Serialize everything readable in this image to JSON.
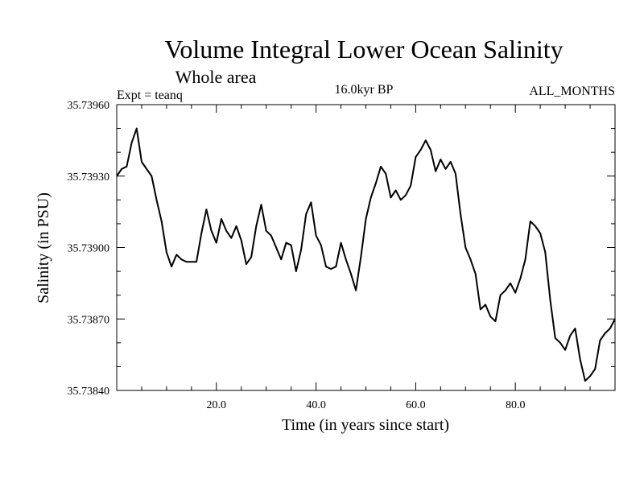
{
  "chart_data": {
    "type": "line",
    "title": "Volume Integral Lower Ocean Salinity",
    "subtitle": "Whole area",
    "annotations": {
      "left": "Expt = teanq",
      "center": "16.0kyr BP",
      "right": "ALL_MONTHS"
    },
    "xlabel": "Time (in years since start)",
    "ylabel": "Salinity (in PSU)",
    "xlim": [
      0,
      100
    ],
    "ylim": [
      35.7384,
      35.7396
    ],
    "x_ticks": [
      20,
      40,
      60,
      80
    ],
    "x_tick_labels": [
      "20.0",
      "40.0",
      "60.0",
      "80.0"
    ],
    "x_minor_step": 5,
    "y_ticks": [
      35.7384,
      35.7387,
      35.739,
      35.7393,
      35.7396
    ],
    "y_tick_labels": [
      "35.73840",
      "35.73870",
      "35.73900",
      "35.73930",
      "35.73960"
    ],
    "y_minor_step": 0.0001,
    "grid": false,
    "series": [
      {
        "name": "salinity",
        "color": "#000000",
        "x": [
          0,
          1,
          2,
          3,
          4,
          5,
          6,
          7,
          8,
          9,
          10,
          11,
          12,
          13,
          14,
          15,
          16,
          17,
          18,
          19,
          20,
          21,
          22,
          23,
          24,
          25,
          26,
          27,
          28,
          29,
          30,
          31,
          32,
          33,
          34,
          35,
          36,
          37,
          38,
          39,
          40,
          41,
          42,
          43,
          44,
          45,
          46,
          47,
          48,
          49,
          50,
          51,
          52,
          53,
          54,
          55,
          56,
          57,
          58,
          59,
          60,
          61,
          62,
          63,
          64,
          65,
          66,
          67,
          68,
          69,
          70,
          71,
          72,
          73,
          74,
          75,
          76,
          77,
          78,
          79,
          80,
          81,
          82,
          83,
          84,
          85,
          86,
          87,
          88,
          89,
          90,
          91,
          92,
          93,
          94,
          95,
          96,
          97,
          98,
          99,
          100
        ],
        "values": [
          35.7393,
          35.73933,
          35.73934,
          35.73944,
          35.7395,
          35.73936,
          35.73933,
          35.7393,
          35.7392,
          35.73911,
          35.73898,
          35.73892,
          35.73897,
          35.73895,
          35.73894,
          35.73894,
          35.73894,
          35.73906,
          35.73916,
          35.73907,
          35.73902,
          35.73912,
          35.73907,
          35.73904,
          35.73909,
          35.73903,
          35.73893,
          35.73896,
          35.73909,
          35.73918,
          35.73907,
          35.73905,
          35.739,
          35.73895,
          35.73902,
          35.73901,
          35.7389,
          35.73899,
          35.73914,
          35.73919,
          35.73905,
          35.73901,
          35.73892,
          35.73891,
          35.73892,
          35.73902,
          35.73895,
          35.73889,
          35.73882,
          35.73896,
          35.73912,
          35.73921,
          35.73927,
          35.73934,
          35.73931,
          35.73921,
          35.73924,
          35.7392,
          35.73922,
          35.73926,
          35.73938,
          35.73941,
          35.73945,
          35.73941,
          35.73932,
          35.73937,
          35.73933,
          35.73936,
          35.73931,
          35.73914,
          35.739,
          35.73895,
          35.73889,
          35.73874,
          35.73876,
          35.73871,
          35.73869,
          35.7388,
          35.73882,
          35.73885,
          35.73881,
          35.73887,
          35.73895,
          35.73911,
          35.73909,
          35.73906,
          35.73898,
          35.73878,
          35.73862,
          35.7386,
          35.73857,
          35.73863,
          35.73866,
          35.73853,
          35.73844,
          35.73846,
          35.73849,
          35.73861,
          35.73864,
          35.73866,
          35.7387
        ]
      }
    ]
  }
}
